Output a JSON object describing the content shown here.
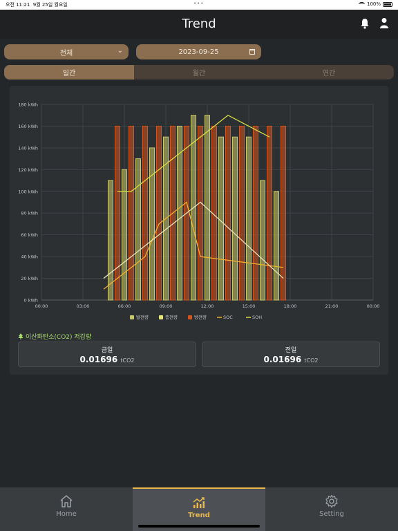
{
  "status_bar": {
    "time": "오전 11:21",
    "date": "9월 25일 월요일",
    "battery": "100%"
  },
  "header": {
    "title": "Trend"
  },
  "filters": {
    "scope": "전체",
    "date": "2023-09-25"
  },
  "period_tabs": [
    {
      "label": "일간",
      "active": true
    },
    {
      "label": "월간",
      "active": false
    },
    {
      "label": "연간",
      "active": false
    }
  ],
  "chart_data": {
    "type": "bar",
    "x_ticks": [
      "00:00",
      "03:00",
      "06:00",
      "09:00",
      "12:00",
      "15:00",
      "18:00",
      "21:00",
      "00:00"
    ],
    "y_ticks": [
      "0 kWh",
      "20 kWh",
      "40 kWh",
      "60 kWh",
      "80 kWh",
      "100 kWh",
      "120 kWh",
      "140 kWh",
      "160 kWh",
      "180 kWh"
    ],
    "ylim": [
      0,
      180
    ],
    "xlim_hours": [
      0,
      24
    ],
    "grid": true,
    "legend_position": "bottom",
    "colors": {
      "발전량": "#c8c86a",
      "충전량": "#e6e67a",
      "방전량": "#d4541e",
      "SOC": "#f0b030",
      "SOH": "#d8e040"
    },
    "series": [
      {
        "name": "발전량",
        "kind": "bar",
        "x": [
          5,
          6,
          7,
          8,
          9,
          10,
          11,
          12,
          13,
          14,
          15,
          16,
          17
        ],
        "values": [
          110,
          120,
          130,
          140,
          150,
          160,
          170,
          170,
          150,
          150,
          150,
          110,
          100
        ]
      },
      {
        "name": "충전량",
        "kind": "bar",
        "x": [],
        "values": []
      },
      {
        "name": "방전량",
        "kind": "bar",
        "x": [
          5.5,
          6.5,
          7.5,
          8.5,
          9.5,
          10.5,
          11.5,
          12.5,
          13.5,
          14.5,
          15.5,
          16.5,
          17.5
        ],
        "values": [
          160,
          160,
          160,
          160,
          160,
          160,
          160,
          160,
          160,
          160,
          160,
          160,
          160
        ]
      },
      {
        "name": "SOC",
        "kind": "line",
        "x": [
          4.5,
          7.5,
          8.5,
          10.5,
          11.5,
          17.5
        ],
        "values": [
          10,
          40,
          70,
          90,
          40,
          30
        ]
      },
      {
        "name": "SOH",
        "kind": "line",
        "x": [
          5.5,
          6.5,
          13.5,
          16.5
        ],
        "values": [
          100,
          100,
          170,
          150
        ]
      },
      {
        "name": "",
        "kind": "line",
        "color": "#e8e0b8",
        "x": [
          4.5,
          11.5,
          17.5
        ],
        "values": [
          20,
          90,
          20
        ]
      }
    ]
  },
  "co2": {
    "title": "이산화탄소(CO2) 저감량",
    "today": {
      "label": "금일",
      "value": "0.01696",
      "unit": "tCO2"
    },
    "yesterday": {
      "label": "전일",
      "value": "0.01696",
      "unit": "tCO2"
    }
  },
  "nav": [
    {
      "label": "Home",
      "icon": "home-icon",
      "active": false
    },
    {
      "label": "Trend",
      "icon": "trend-icon",
      "active": true
    },
    {
      "label": "Setting",
      "icon": "gear-icon",
      "active": false
    }
  ]
}
